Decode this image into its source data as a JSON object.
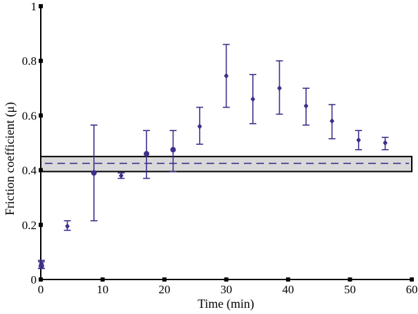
{
  "chart_data": {
    "type": "scatter",
    "xlabel": "Time (min)",
    "ylabel": "Friction coefficient (μ)",
    "xlim": [
      0,
      60
    ],
    "ylim": [
      0,
      1
    ],
    "x_ticks": [
      0,
      10,
      20,
      30,
      40,
      50,
      60
    ],
    "y_ticks": [
      0,
      0.2,
      0.4,
      0.6,
      0.8,
      1
    ],
    "x_tick_labels": [
      "0",
      "10",
      "20",
      "30",
      "40",
      "50",
      "60"
    ],
    "y_tick_labels": [
      "0",
      "0.2",
      "0.4",
      "0.6",
      "0.8",
      "1"
    ],
    "grid": false,
    "reference_band": {
      "low": 0.395,
      "high": 0.45,
      "mean": 0.425,
      "fill": "#d9d9d9",
      "edge": "#000000",
      "line": "#3d2f8a"
    },
    "series": [
      {
        "marker": "diamond",
        "color": "#3d2f8a",
        "points": [
          {
            "x": 0.1,
            "y": 0.06,
            "low": 0.04,
            "high": 0.07
          },
          {
            "x": 4.3,
            "y": 0.195,
            "low": 0.18,
            "high": 0.215
          },
          {
            "x": 13.0,
            "y": 0.38,
            "low": 0.37,
            "high": 0.39
          },
          {
            "x": 25.7,
            "y": 0.56,
            "low": 0.495,
            "high": 0.63
          },
          {
            "x": 30.0,
            "y": 0.745,
            "low": 0.63,
            "high": 0.86
          },
          {
            "x": 34.3,
            "y": 0.66,
            "low": 0.57,
            "high": 0.75
          },
          {
            "x": 38.6,
            "y": 0.7,
            "low": 0.605,
            "high": 0.8
          },
          {
            "x": 42.9,
            "y": 0.635,
            "low": 0.565,
            "high": 0.7
          },
          {
            "x": 47.1,
            "y": 0.58,
            "low": 0.515,
            "high": 0.64
          },
          {
            "x": 51.4,
            "y": 0.51,
            "low": 0.475,
            "high": 0.545
          },
          {
            "x": 55.7,
            "y": 0.5,
            "low": 0.475,
            "high": 0.52
          }
        ]
      },
      {
        "marker": "circle",
        "color": "#3d2f8a",
        "points": [
          {
            "x": 0.1,
            "y": 0.05,
            "low": 0.04,
            "high": 0.065
          },
          {
            "x": 8.6,
            "y": 0.39,
            "low": 0.215,
            "high": 0.565
          },
          {
            "x": 17.1,
            "y": 0.46,
            "low": 0.37,
            "high": 0.545
          },
          {
            "x": 21.4,
            "y": 0.475,
            "low": 0.395,
            "high": 0.545
          }
        ]
      }
    ]
  }
}
